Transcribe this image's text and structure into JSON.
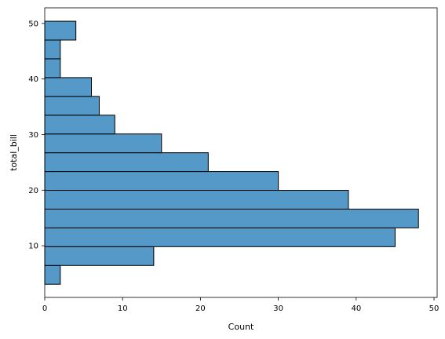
{
  "chart_data": {
    "type": "bar",
    "orientation": "horizontal",
    "title": "",
    "xlabel": "Count",
    "ylabel": "total_bill",
    "xlim": [
      0,
      50.4
    ],
    "ylim": [
      0.7,
      52.8
    ],
    "x_ticks": [
      0,
      10,
      20,
      30,
      40,
      50
    ],
    "y_ticks": [
      10,
      20,
      30,
      40,
      50
    ],
    "bar_color": "#5599c8",
    "bar_edge_color": "#000000",
    "bins": [
      {
        "low": 3.07,
        "high": 6.45,
        "count": 2
      },
      {
        "low": 6.45,
        "high": 9.83,
        "count": 14
      },
      {
        "low": 9.83,
        "high": 13.21,
        "count": 45
      },
      {
        "low": 13.21,
        "high": 16.59,
        "count": 48
      },
      {
        "low": 16.59,
        "high": 19.97,
        "count": 39
      },
      {
        "low": 19.97,
        "high": 23.35,
        "count": 30
      },
      {
        "low": 23.35,
        "high": 26.73,
        "count": 21
      },
      {
        "low": 26.73,
        "high": 30.11,
        "count": 15
      },
      {
        "low": 30.11,
        "high": 33.49,
        "count": 9
      },
      {
        "low": 33.49,
        "high": 36.87,
        "count": 7
      },
      {
        "low": 36.87,
        "high": 40.25,
        "count": 6
      },
      {
        "low": 40.25,
        "high": 43.63,
        "count": 2
      },
      {
        "low": 43.63,
        "high": 47.01,
        "count": 2
      },
      {
        "low": 47.01,
        "high": 50.39,
        "count": 4
      }
    ]
  }
}
